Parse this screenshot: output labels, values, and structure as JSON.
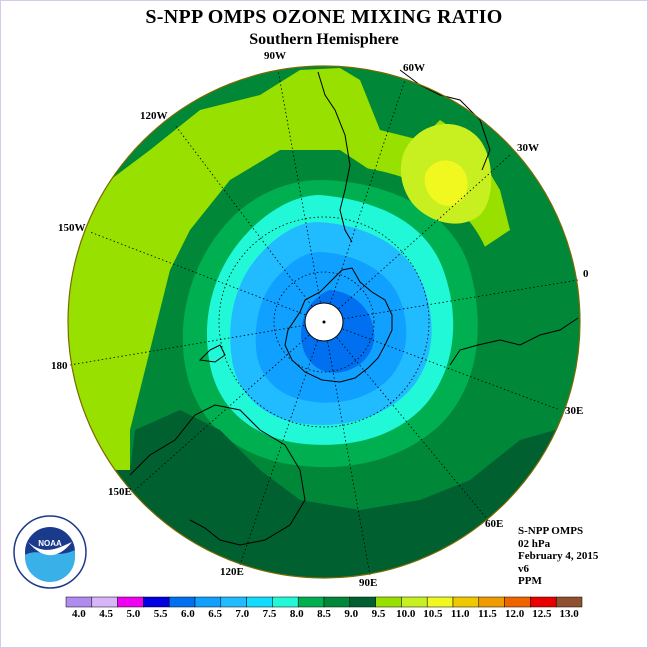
{
  "title": "S-NPP OMPS OZONE MIXING RATIO",
  "subtitle": "Southern Hemisphere",
  "longitudes": {
    "lon_90w": "90W",
    "lon_60w": "60W",
    "lon_120w": "120W",
    "lon_30w": "30W",
    "lon_150w": "150W",
    "lon_0": "0",
    "lon_180": "180",
    "lon_30e": "30E",
    "lon_150e": "150E",
    "lon_60e": "60E",
    "lon_120e": "120E",
    "lon_90e": "90E"
  },
  "info": {
    "instrument": "S-NPP OMPS",
    "level": "02 hPa",
    "date": "February 4, 2015",
    "version": "v6",
    "units": "PPM"
  },
  "logo_text": "NOAA",
  "colorbar": {
    "labels": [
      "4.0",
      "4.5",
      "5.0",
      "5.5",
      "6.0",
      "6.5",
      "7.0",
      "7.5",
      "8.0",
      "8.5",
      "9.0",
      "9.5",
      "10.0",
      "10.5",
      "11.0",
      "11.5",
      "12.0",
      "12.5",
      "13.0"
    ],
    "colors": [
      "#b08cf0",
      "#d8b4f8",
      "#f000f0",
      "#0000e0",
      "#0070f0",
      "#10a0ff",
      "#20bcff",
      "#10dcff",
      "#20f8d8",
      "#00b050",
      "#008838",
      "#006030",
      "#98e000",
      "#c8f020",
      "#f0f820",
      "#f0c800",
      "#f09c00",
      "#f06400",
      "#e80000",
      "#905030"
    ]
  },
  "map_colors": {
    "c7": "#10a0ff",
    "c75": "#20bcff",
    "c8": "#20f8d8",
    "c85": "#00b050",
    "c9": "#008838",
    "c95": "#98e000",
    "c10": "#c8f020",
    "c105": "#f0f820",
    "c_outer": "#006030"
  }
}
